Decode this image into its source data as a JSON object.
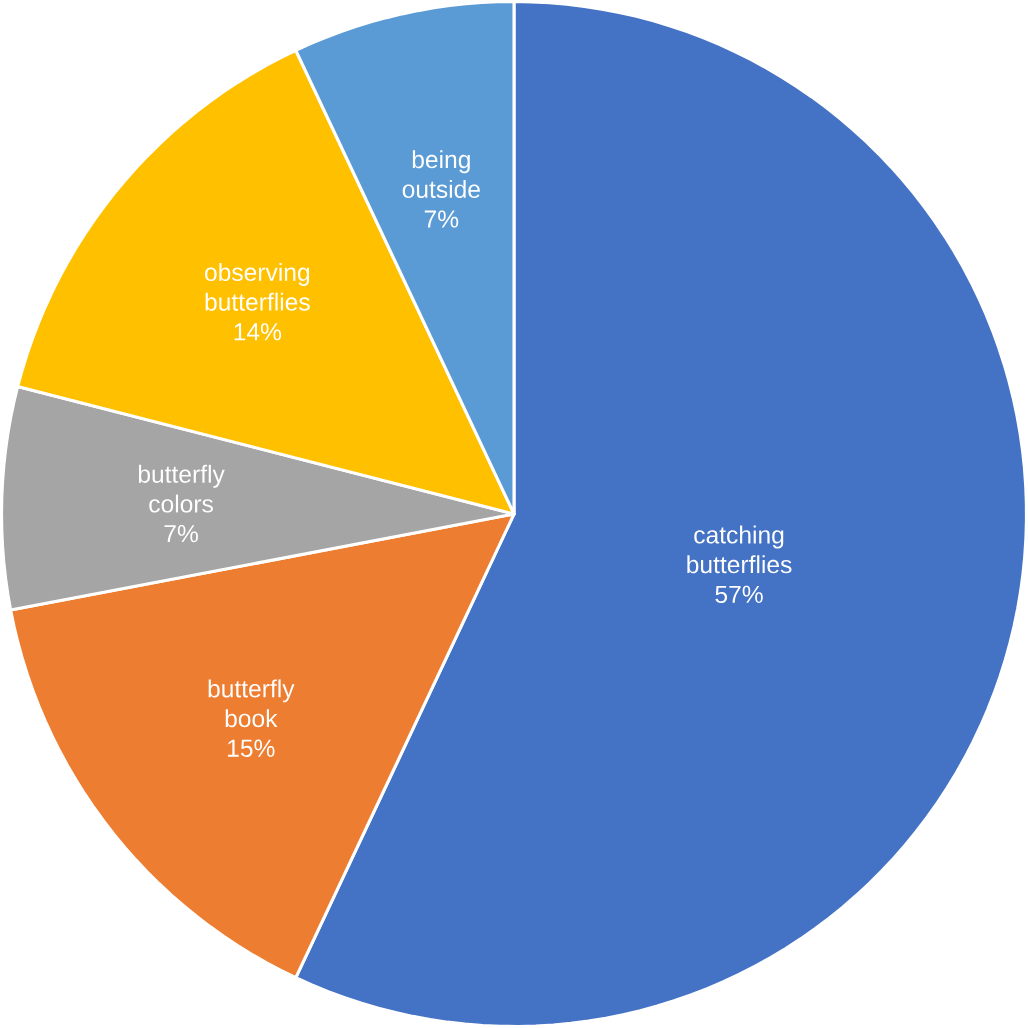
{
  "chart_data": {
    "type": "pie",
    "categories": [
      "catching butterflies",
      "butterfly book",
      "butterfly colors",
      "observing butterflies",
      "being outside"
    ],
    "values": [
      57,
      15,
      7,
      14,
      7
    ],
    "colors": [
      "#4472c4",
      "#ed7d31",
      "#a5a5a5",
      "#ffc000",
      "#5b9bd5"
    ],
    "value_labels": [
      "57%",
      "15%",
      "7%",
      "14%",
      "7%"
    ]
  }
}
